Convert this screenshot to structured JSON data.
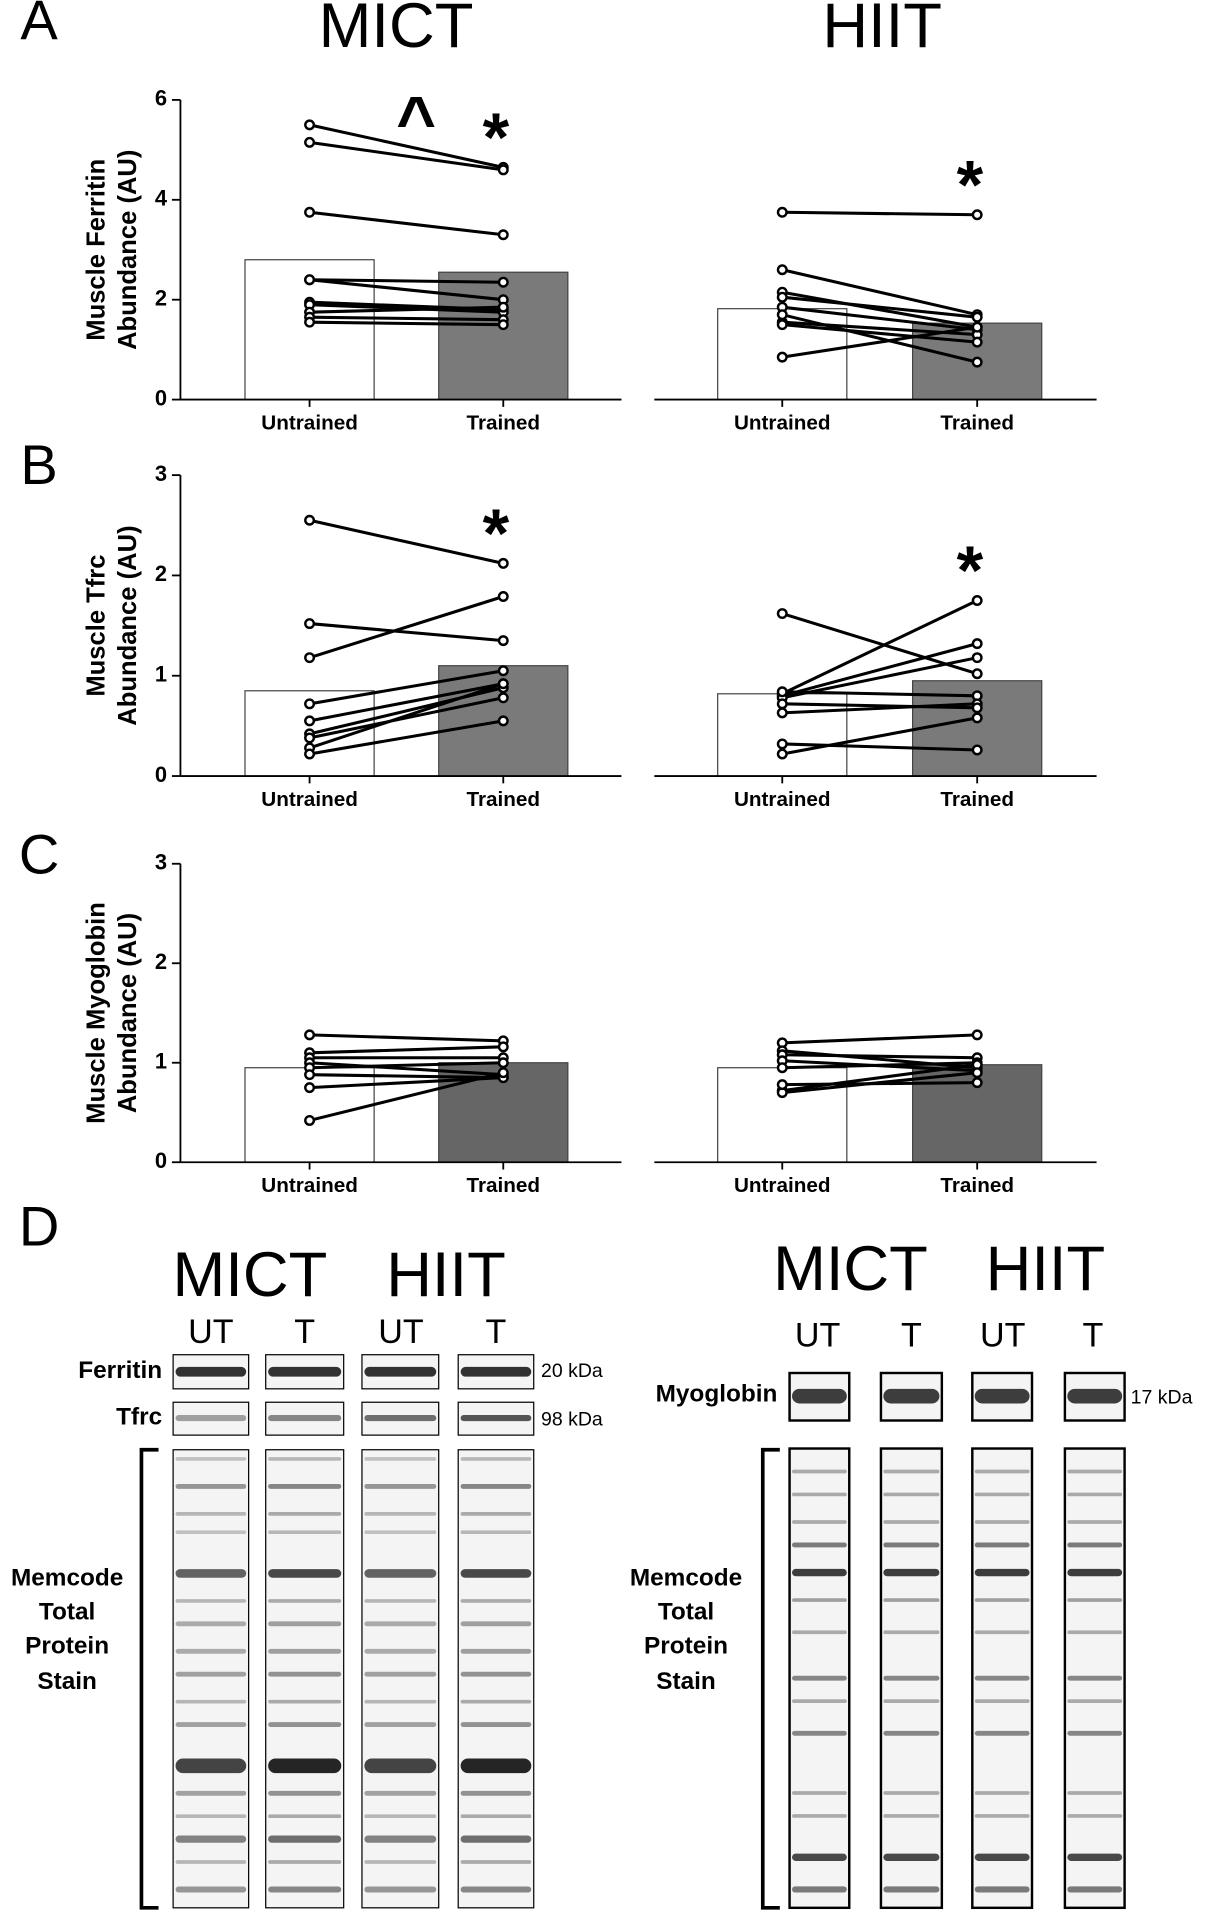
{
  "panel_labels": [
    "A",
    "B",
    "C",
    "D"
  ],
  "column_titles": [
    "MICT",
    "HIIT"
  ],
  "chart_data": [
    {
      "type": "paired-bar",
      "ylabel": [
        "Muscle Ferritin",
        "Abundance (AU)"
      ],
      "categories": [
        "Untrained",
        "Trained"
      ],
      "values": [
        2.8,
        2.55
      ],
      "colors": [
        "#ffffff",
        "#7a7a7a"
      ],
      "ylim": [
        0,
        6
      ],
      "yticks": [
        0,
        2,
        4,
        6
      ],
      "pairs": [
        [
          5.5,
          4.65
        ],
        [
          5.15,
          4.6
        ],
        [
          3.75,
          3.3
        ],
        [
          2.4,
          2.35
        ],
        [
          2.4,
          2.0
        ],
        [
          1.95,
          1.8
        ],
        [
          1.9,
          1.75
        ],
        [
          1.75,
          1.85
        ],
        [
          1.65,
          1.6
        ],
        [
          1.55,
          1.5
        ]
      ],
      "annotations": [
        {
          "text": "^"
        },
        {
          "text": "*",
          "category": 1
        }
      ]
    },
    {
      "type": "paired-bar",
      "categories": [
        "Untrained",
        "Trained"
      ],
      "values": [
        1.82,
        1.53
      ],
      "colors": [
        "#ffffff",
        "#7a7a7a"
      ],
      "ylim": [
        0,
        6
      ],
      "pairs": [
        [
          3.75,
          3.7
        ],
        [
          2.6,
          1.7
        ],
        [
          2.15,
          1.45
        ],
        [
          2.05,
          1.65
        ],
        [
          1.85,
          1.4
        ],
        [
          1.55,
          1.3
        ],
        [
          1.5,
          1.15
        ],
        [
          0.85,
          1.45
        ],
        [
          1.7,
          0.75
        ]
      ],
      "annotations": [
        {
          "text": "*",
          "category": 1
        }
      ]
    },
    {
      "type": "paired-bar",
      "ylabel": [
        "Muscle Tfrc",
        "Abundance (AU)"
      ],
      "categories": [
        "Untrained",
        "Trained"
      ],
      "values": [
        0.85,
        1.1
      ],
      "colors": [
        "#ffffff",
        "#7a7a7a"
      ],
      "ylim": [
        0,
        3
      ],
      "yticks": [
        0,
        1,
        2,
        3
      ],
      "pairs": [
        [
          2.55,
          2.12
        ],
        [
          1.52,
          1.35
        ],
        [
          1.18,
          1.79
        ],
        [
          0.72,
          1.05
        ],
        [
          0.55,
          0.92
        ],
        [
          0.42,
          0.88
        ],
        [
          0.38,
          0.78
        ],
        [
          0.28,
          0.92
        ],
        [
          0.22,
          0.55
        ]
      ],
      "annotations": [
        {
          "text": "*",
          "category": 1
        }
      ]
    },
    {
      "type": "paired-bar",
      "categories": [
        "Untrained",
        "Trained"
      ],
      "values": [
        0.82,
        0.95
      ],
      "colors": [
        "#ffffff",
        "#7a7a7a"
      ],
      "ylim": [
        0,
        3
      ],
      "pairs": [
        [
          1.62,
          1.02
        ],
        [
          0.82,
          1.75
        ],
        [
          0.8,
          1.32
        ],
        [
          0.78,
          1.18
        ],
        [
          0.84,
          0.8
        ],
        [
          0.63,
          0.72
        ],
        [
          0.72,
          0.68
        ],
        [
          0.32,
          0.26
        ],
        [
          0.22,
          0.58
        ]
      ],
      "annotations": [
        {
          "text": "*",
          "category": 1
        }
      ]
    },
    {
      "type": "paired-bar",
      "ylabel": [
        "Muscle Myoglobin",
        "Abundance (AU)"
      ],
      "categories": [
        "Untrained",
        "Trained"
      ],
      "values": [
        0.95,
        1.0
      ],
      "colors": [
        "#ffffff",
        "#666666"
      ],
      "ylim": [
        0,
        3
      ],
      "yticks": [
        0,
        1,
        2,
        3
      ],
      "pairs": [
        [
          1.28,
          1.22
        ],
        [
          1.1,
          1.16
        ],
        [
          1.05,
          1.05
        ],
        [
          1.0,
          0.88
        ],
        [
          0.95,
          1.0
        ],
        [
          0.88,
          0.85
        ],
        [
          0.75,
          0.85
        ],
        [
          0.42,
          0.9
        ]
      ]
    },
    {
      "type": "paired-bar",
      "categories": [
        "Untrained",
        "Trained"
      ],
      "values": [
        0.95,
        0.98
      ],
      "colors": [
        "#ffffff",
        "#666666"
      ],
      "ylim": [
        0,
        3
      ],
      "pairs": [
        [
          1.2,
          1.28
        ],
        [
          1.12,
          0.95
        ],
        [
          1.08,
          1.05
        ],
        [
          1.02,
          0.92
        ],
        [
          0.95,
          1.0
        ],
        [
          0.72,
          0.98
        ],
        [
          0.7,
          0.9
        ],
        [
          0.78,
          0.8
        ]
      ]
    }
  ],
  "blots": {
    "left": {
      "groups": [
        "MICT",
        "HIIT"
      ],
      "lanes": [
        "UT",
        "T",
        "UT",
        "T"
      ],
      "proteins": [
        "Ferritin",
        "Tfrc"
      ],
      "sizes": [
        "20 kDa",
        "98 kDa"
      ],
      "stain": [
        "Memcode",
        "Total",
        "Protein",
        "Stain"
      ]
    },
    "right": {
      "groups": [
        "MICT",
        "HIIT"
      ],
      "lanes": [
        "UT",
        "T",
        "UT",
        "T"
      ],
      "proteins": [
        "Myoglobin"
      ],
      "sizes": [
        "17 kDa"
      ],
      "stain": [
        "Memcode",
        "Total",
        "Protein",
        "Stain"
      ]
    }
  }
}
